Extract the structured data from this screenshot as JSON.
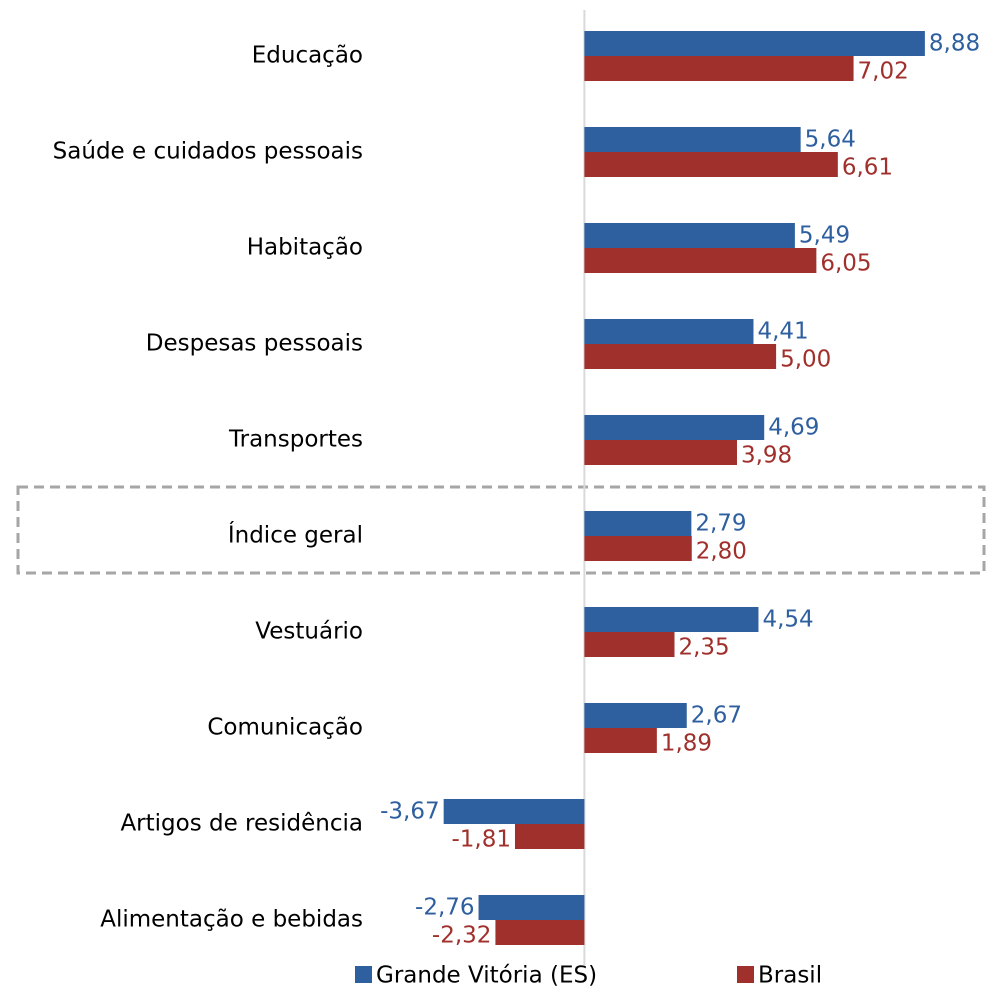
{
  "chart_data": {
    "type": "bar",
    "orientation": "horizontal",
    "categories": [
      "Educação",
      "Saúde e cuidados pessoais",
      "Habitação",
      "Despesas pessoais",
      "Transportes",
      "Índice geral",
      "Vestuário",
      "Comunicação",
      "Artigos de residência",
      "Alimentação e bebidas"
    ],
    "series": [
      {
        "name": "Grande Vitória (ES)",
        "color": "#2e5f9e",
        "values": [
          8.88,
          5.64,
          5.49,
          4.41,
          4.69,
          2.79,
          4.54,
          2.67,
          -3.67,
          -2.76
        ],
        "value_labels": [
          "8,88",
          "5,64",
          "5,49",
          "4,41",
          "4,69",
          "2,79",
          "4,54",
          "2,67",
          "-3,67",
          "-2,76"
        ]
      },
      {
        "name": "Brasil",
        "color": "#a0302c",
        "values": [
          7.02,
          6.61,
          6.05,
          5.0,
          3.98,
          2.8,
          2.35,
          1.89,
          -1.81,
          -2.32
        ],
        "value_labels": [
          "7,02",
          "6,61",
          "6,05",
          "5,00",
          "3,98",
          "2,80",
          "2,35",
          "1,89",
          "-1,81",
          "-2,32"
        ]
      }
    ],
    "xlim": [
      -4,
      10.5
    ],
    "legend": "bottom"
  }
}
